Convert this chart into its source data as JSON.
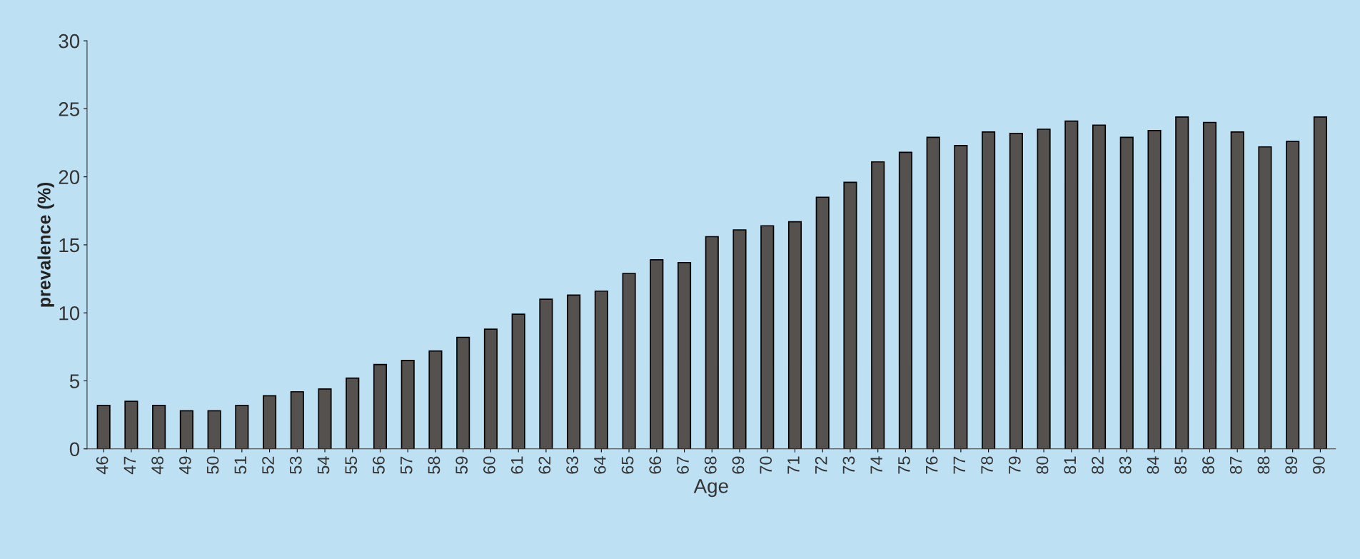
{
  "chart_data": {
    "type": "bar",
    "xlabel": "Age",
    "ylabel": "prevalence (%)",
    "categories": [
      "46",
      "47",
      "48",
      "49",
      "50",
      "51",
      "52",
      "53",
      "54",
      "55",
      "56",
      "57",
      "58",
      "59",
      "60",
      "61",
      "62",
      "63",
      "64",
      "65",
      "66",
      "67",
      "68",
      "69",
      "70",
      "71",
      "72",
      "73",
      "74",
      "75",
      "76",
      "77",
      "78",
      "79",
      "80",
      "81",
      "82",
      "83",
      "84",
      "85",
      "86",
      "87",
      "88",
      "89",
      "90"
    ],
    "values": [
      3.2,
      3.5,
      3.2,
      2.8,
      2.8,
      3.2,
      3.9,
      4.2,
      4.4,
      5.2,
      6.2,
      6.5,
      7.2,
      8.2,
      8.8,
      9.9,
      11.0,
      11.3,
      11.6,
      12.9,
      13.9,
      13.7,
      15.6,
      16.1,
      16.4,
      16.7,
      18.5,
      19.6,
      21.1,
      21.8,
      22.9,
      22.3,
      23.3,
      23.2,
      23.5,
      24.1,
      23.8,
      22.9,
      23.4,
      24.4,
      24.0,
      23.3,
      22.2,
      22.6,
      24.4
    ],
    "color": "#54514f",
    "ylim": [
      0,
      30
    ],
    "yticks": [
      0,
      5,
      10,
      15,
      20,
      25,
      30
    ],
    "grid": false,
    "legend": false
  }
}
